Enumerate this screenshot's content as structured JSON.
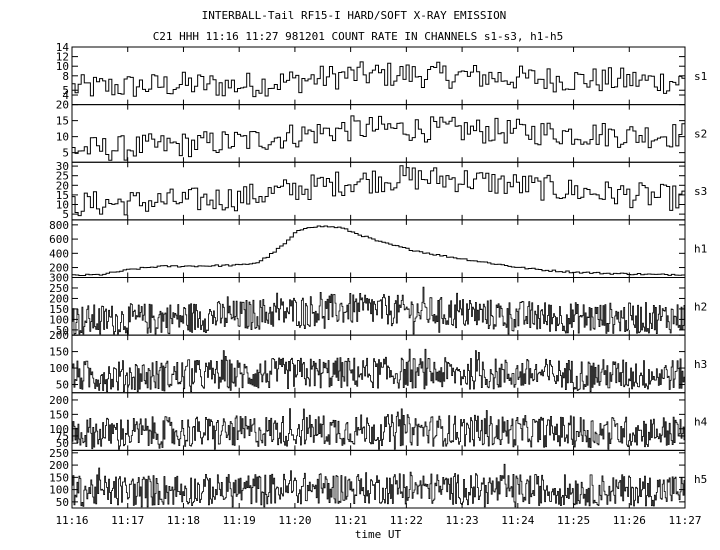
{
  "chart_data": {
    "type": "line",
    "title": "INTERBALL-Tail RF15-I HARD/SOFT X-RAY EMISSION",
    "subtitle": "C21 HHH 11:16 11:27 981201  COUNT RATE IN CHANNELS s1-s3, h1-h5",
    "xlabel": "time UT",
    "x_ticks": [
      "11:16",
      "11:17",
      "11:18",
      "11:19",
      "11:20",
      "11:21",
      "11:22",
      "11:23",
      "11:24",
      "11:25",
      "11:26",
      "11:27"
    ],
    "grid": false,
    "panels": [
      {
        "name": "s1",
        "ylim": [
          2,
          14
        ],
        "ticks": [
          4,
          5,
          8,
          10,
          12,
          14
        ],
        "tick_labels": [
          "4",
          "5",
          "8",
          "10",
          "12",
          "14"
        ],
        "x": [
          0,
          1,
          2,
          3,
          4,
          5,
          6,
          7,
          8,
          9,
          10,
          11
        ],
        "values": [
          5.5,
          5.8,
          6.2,
          6.0,
          7.0,
          8.2,
          8.3,
          8.0,
          7.5,
          7.2,
          7.0,
          6.8
        ]
      },
      {
        "name": "s2",
        "ylim": [
          2,
          20
        ],
        "ticks": [
          5,
          10,
          15,
          20
        ],
        "tick_labels": [
          "5",
          "10",
          "15",
          "20"
        ],
        "x": [
          0,
          1,
          2,
          3,
          4,
          5,
          6,
          7,
          8,
          9,
          10,
          11
        ],
        "values": [
          6,
          6.5,
          7.5,
          8.5,
          10.5,
          12.5,
          12.5,
          12,
          11.5,
          11,
          10.5,
          10.5
        ]
      },
      {
        "name": "s3",
        "ylim": [
          2,
          32
        ],
        "ticks": [
          5,
          10,
          15,
          20,
          25,
          30
        ],
        "tick_labels": [
          "5",
          "10",
          "15",
          "20",
          "25",
          "30"
        ],
        "x": [
          0,
          1,
          2,
          3,
          4,
          5,
          6,
          7,
          8,
          9,
          10,
          11
        ],
        "values": [
          10,
          11,
          12,
          13.5,
          18,
          22,
          24,
          23,
          20,
          17,
          15,
          13
        ]
      },
      {
        "name": "h1",
        "ylim": [
          60,
          870
        ],
        "ticks": [
          200,
          400,
          600,
          800
        ],
        "tick_labels": [
          "200",
          "400",
          "600",
          "800"
        ],
        "x": [
          0,
          0.5,
          1,
          1.5,
          2,
          2.5,
          3,
          3.3,
          3.5,
          3.8,
          4,
          4.2,
          4.5,
          4.8,
          5,
          5.5,
          6,
          6.5,
          7,
          7.5,
          8,
          8.5,
          9,
          9.5,
          10,
          10.5,
          11
        ],
        "values": [
          90,
          100,
          170,
          215,
          220,
          225,
          235,
          270,
          360,
          540,
          700,
          770,
          780,
          760,
          700,
          560,
          460,
          380,
          320,
          260,
          200,
          160,
          135,
          120,
          110,
          100,
          105
        ]
      },
      {
        "name": "h2",
        "ylim": [
          25,
          300
        ],
        "ticks": [
          50,
          100,
          150,
          200,
          250,
          300
        ],
        "tick_labels": [
          "50",
          "100",
          "150",
          "200",
          "250",
          "300"
        ],
        "x": [
          0,
          1,
          2,
          3,
          4,
          5,
          6,
          7,
          8,
          9,
          10,
          11
        ],
        "values": [
          95,
          100,
          108,
          118,
          140,
          150,
          140,
          128,
          115,
          108,
          105,
          110
        ]
      },
      {
        "name": "h3",
        "ylim": [
          25,
          200
        ],
        "ticks": [
          50,
          100,
          150,
          200
        ],
        "tick_labels": [
          "50",
          "100",
          "150",
          "200"
        ],
        "x": [
          0,
          1,
          2,
          3,
          4,
          5,
          6,
          7,
          8,
          9,
          10,
          11
        ],
        "values": [
          75,
          76,
          78,
          80,
          84,
          86,
          85,
          83,
          81,
          80,
          79,
          80
        ]
      },
      {
        "name": "h4",
        "ylim": [
          25,
          225
        ],
        "ticks": [
          50,
          75,
          100,
          150,
          200
        ],
        "tick_labels": [
          "50",
          "75",
          "100",
          "150",
          "200"
        ],
        "x": [
          0,
          1,
          2,
          3,
          4,
          5,
          6,
          7,
          8,
          9,
          10,
          11
        ],
        "values": [
          85,
          86,
          88,
          90,
          94,
          96,
          95,
          93,
          91,
          90,
          89,
          90
        ]
      },
      {
        "name": "h5",
        "ylim": [
          25,
          260
        ],
        "ticks": [
          50,
          100,
          150,
          200,
          250
        ],
        "tick_labels": [
          "50",
          "100",
          "150",
          "200",
          "250"
        ],
        "x": [
          0,
          1,
          2,
          3,
          4,
          5,
          6,
          7,
          8,
          9,
          10,
          11
        ],
        "values": [
          95,
          96,
          98,
          100,
          104,
          106,
          105,
          103,
          100,
          98,
          97,
          98
        ]
      }
    ]
  }
}
